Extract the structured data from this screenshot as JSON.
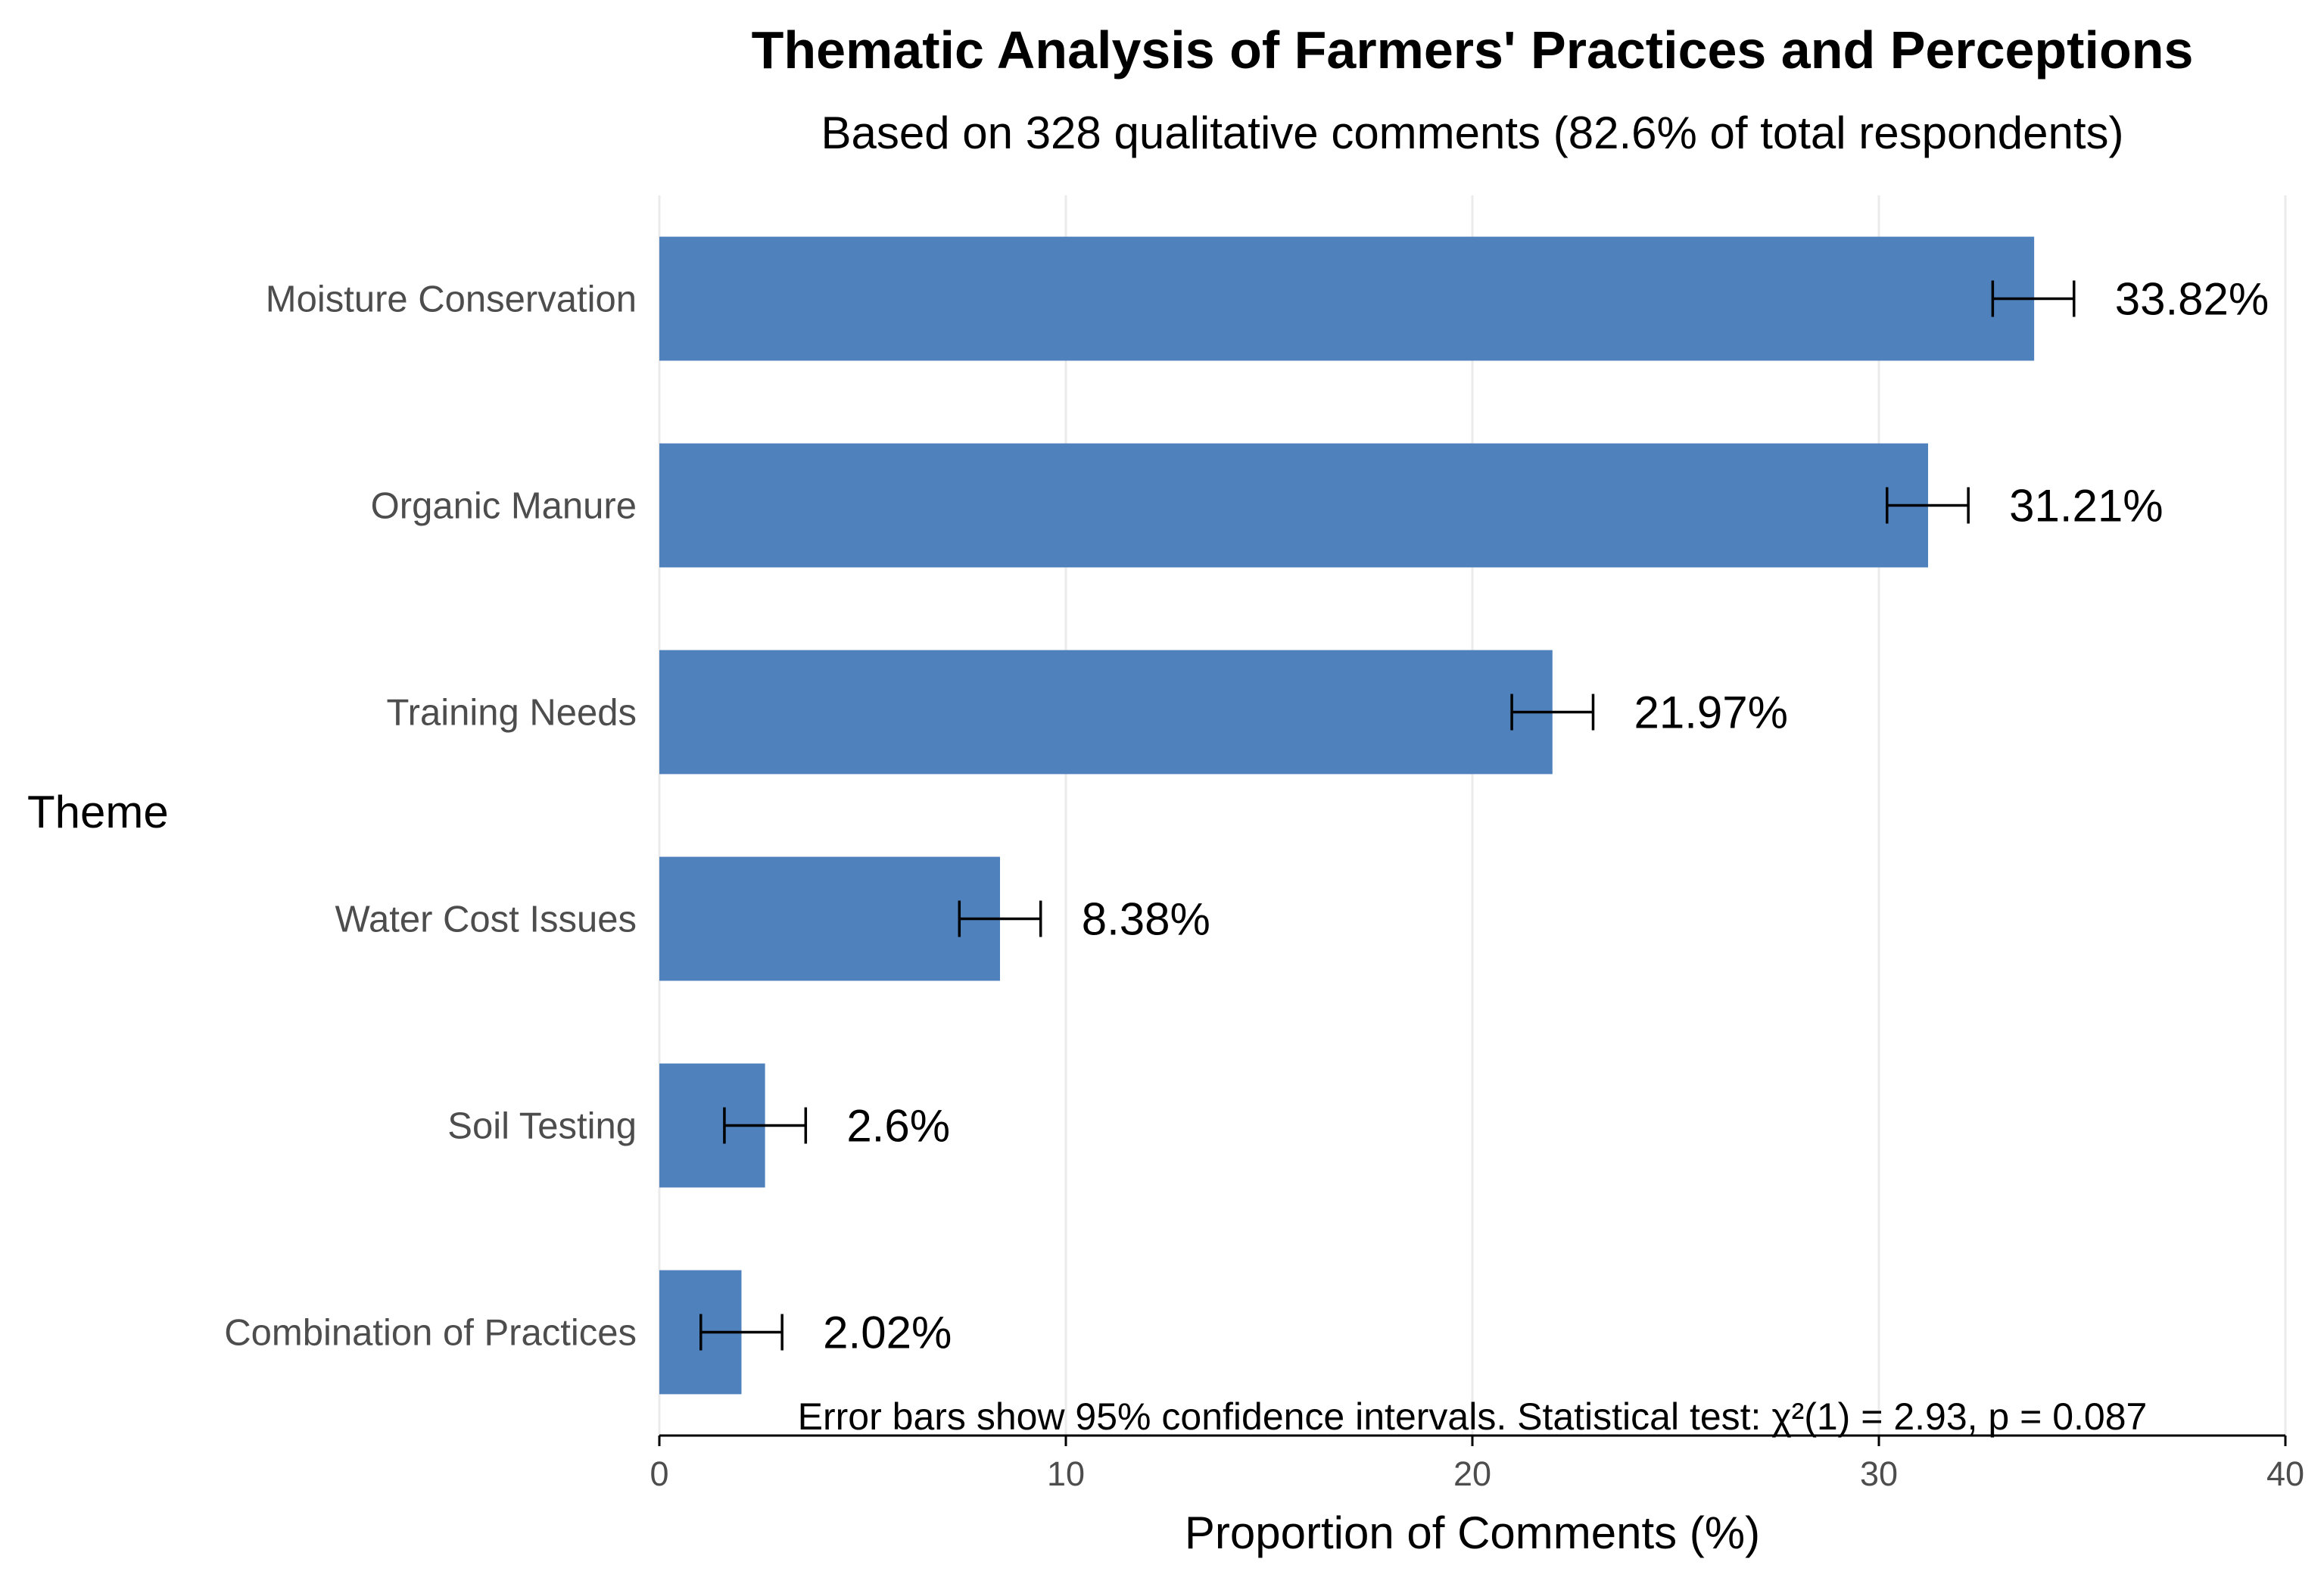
{
  "chart_data": {
    "type": "bar",
    "orientation": "horizontal",
    "title": "Thematic Analysis of Farmers' Practices and Perceptions",
    "subtitle": "Based on 328 qualitative comments (82.6% of total respondents)",
    "xlabel": "Proportion of Comments (%)",
    "ylabel": "Theme",
    "xlim": [
      0,
      40
    ],
    "xticks": [
      0,
      10,
      20,
      30,
      40
    ],
    "grid": true,
    "bar_color": "#4f81bd",
    "categories": [
      "Moisture Conservation",
      "Organic Manure",
      "Training Needs",
      "Water Cost Issues",
      "Soil Testing",
      "Combination of Practices"
    ],
    "values": [
      33.82,
      31.21,
      21.97,
      8.38,
      2.6,
      2.02
    ],
    "value_labels": [
      "33.82%",
      "31.21%",
      "21.97%",
      "8.38%",
      "2.6%",
      "2.02%"
    ],
    "error_bars": [
      [
        32.8,
        34.8
      ],
      [
        30.2,
        32.2
      ],
      [
        20.97,
        22.97
      ],
      [
        7.38,
        9.38
      ],
      [
        1.6,
        3.6
      ],
      [
        1.02,
        3.02
      ]
    ],
    "caption": "Error bars show 95% confidence intervals. Statistical test: χ²(1) = 2.93, p = 0.087"
  }
}
